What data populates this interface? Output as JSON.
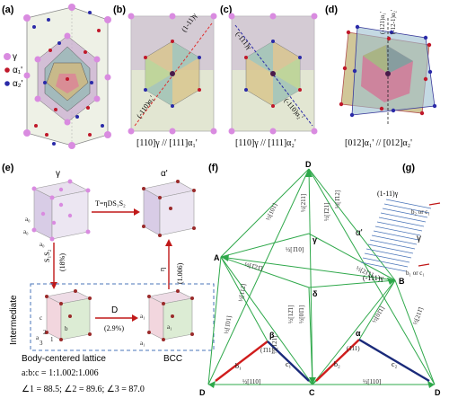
{
  "panel_labels": {
    "a": "(a)",
    "b": "(b)",
    "c": "(c)",
    "d": "(d)",
    "e": "(e)",
    "f": "(f)",
    "g": "(g)"
  },
  "legend": {
    "gamma": "γ",
    "alpha1": "α₁'",
    "alpha2": "α₂'"
  },
  "colors": {
    "gamma": "#d98be0",
    "alpha1": "#c0182a",
    "alpha2": "#2a2aa8",
    "green": "#2ea84a",
    "red": "#d01c1c",
    "navy": "#1a2a7a",
    "dash": "#4a74b8"
  },
  "panel_b": {
    "plane_top": "(1-11)γ",
    "plane_bottom": "(-110)α₁'",
    "caption": "[110]γ // [111]α₁'"
  },
  "panel_c": {
    "plane_top": "(-111)γ",
    "plane_bottom": "(-110)α₂'",
    "caption": "[110]γ // [111]α₂'"
  },
  "panel_d": {
    "plane_top1": "(-121)α₁'",
    "plane_top2": "(-12-1)α₂'",
    "caption": "[012]α₁' // [012]α₂'"
  },
  "panel_e": {
    "gamma": "γ",
    "alpha": "α'",
    "transform": "T=ηDS₁S₂",
    "a0_top": "a₀",
    "a0_mid": "a₀",
    "a0_bot": "a₀",
    "s_label": "S₁S₂",
    "s_pct": "(18%)",
    "eta_label": "η",
    "eta_val": "(1.006)",
    "d_label": "D",
    "d_pct": "(2.9%)",
    "intermediate": "Intermediate",
    "bct": "Body-centered lattice",
    "bcc": "BCC",
    "ratio": "a:b:c = 1:1.002:1.006",
    "angles": "∠1 = 88.5; ∠2 = 89.6; ∠3 = 87.0",
    "cube_labels": {
      "c": "c",
      "a": "a",
      "b": "b",
      "n1": "1",
      "n2": "2",
      "n3": "3",
      "a1a": "a₁",
      "a1b": "a₁",
      "a1c": "a₁"
    }
  },
  "panel_f": {
    "vertices": {
      "D_top": "D",
      "A": "A",
      "B": "B",
      "C": "C",
      "D_left": "D",
      "D_right": "D",
      "gamma": "γ",
      "delta": "δ",
      "beta": "β",
      "alpha": "α"
    },
    "edge_labels": [
      "½[101]",
      "½[1̄12]",
      "½[211]",
      "½[1̄21]",
      "½[1̄10]",
      "½[1̄21̄]",
      "½[21̄1]",
      "½[01̄1]",
      "½[112]",
      "½[1̄01]",
      "½[12̄1]",
      "½[01̄1]",
      "½[121]",
      "½[211̄]",
      "½[110]",
      "½[110]",
      "(1̄11)",
      "(111)",
      "b₁",
      "c₁",
      "b₂",
      "c₂"
    ]
  },
  "panel_g": {
    "top": "(1-11)γ",
    "bottom": "(-111)γ",
    "alpha": "α'",
    "gamma": "γ",
    "b2c1": "b₂ or c₁",
    "b1c1": "b₁ or c₁"
  }
}
